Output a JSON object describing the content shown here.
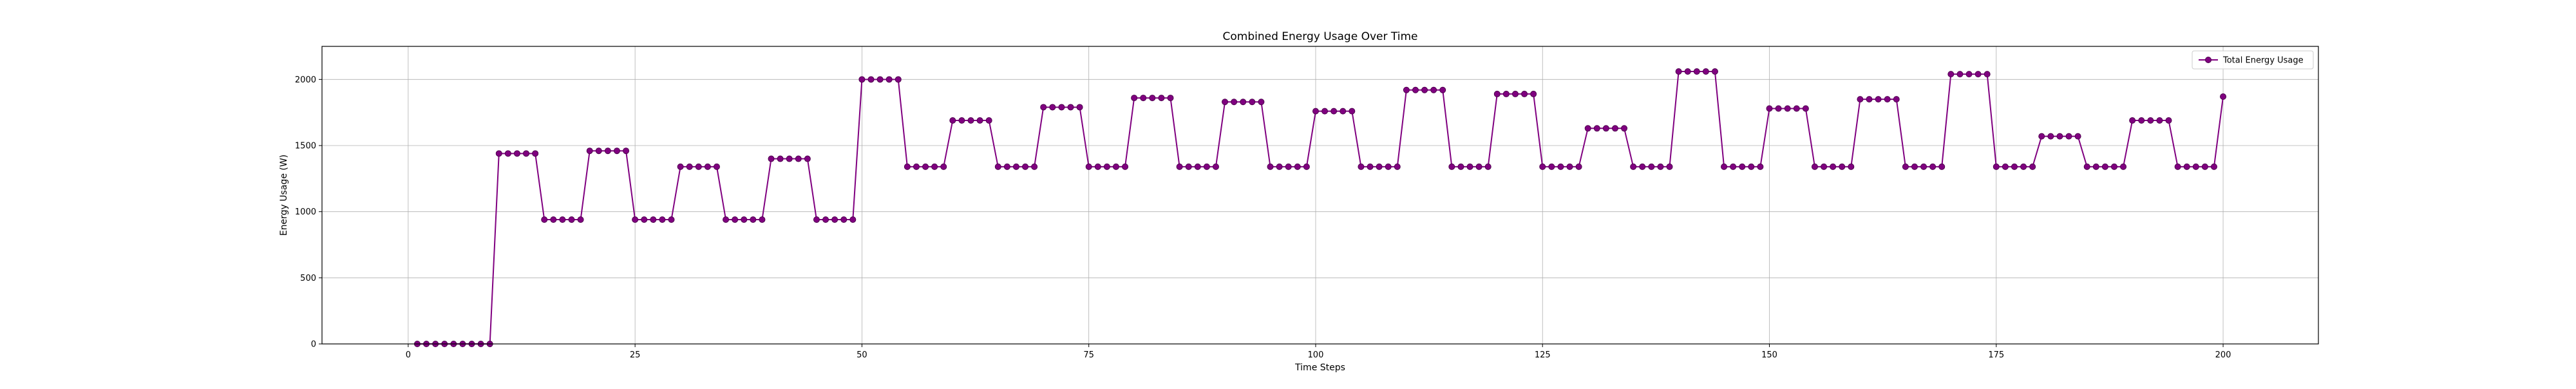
{
  "chart_data": {
    "type": "line",
    "title": "Combined Energy Usage Over Time",
    "xlabel": "Time Steps",
    "ylabel": "Energy Usage (W)",
    "xlim": [
      -9.5,
      210.5
    ],
    "ylim": [
      0,
      2250
    ],
    "xticks": [
      0,
      25,
      50,
      75,
      100,
      125,
      150,
      175,
      200
    ],
    "yticks": [
      0,
      500,
      1000,
      1500,
      2000
    ],
    "grid": true,
    "legend": {
      "position": "top-right",
      "entries": [
        "Total Energy Usage"
      ]
    },
    "colors": {
      "series": "#800080",
      "grid": "#b0b0b0"
    },
    "series": [
      {
        "name": "Total Energy Usage",
        "marker": "circle",
        "x": [
          1,
          2,
          3,
          4,
          5,
          6,
          7,
          8,
          9,
          10,
          11,
          12,
          13,
          14,
          15,
          16,
          17,
          18,
          19,
          20,
          21,
          22,
          23,
          24,
          25,
          26,
          27,
          28,
          29,
          30,
          31,
          32,
          33,
          34,
          35,
          36,
          37,
          38,
          39,
          40,
          41,
          42,
          43,
          44,
          45,
          46,
          47,
          48,
          49,
          50,
          51,
          52,
          53,
          54,
          55,
          56,
          57,
          58,
          59,
          60,
          61,
          62,
          63,
          64,
          65,
          66,
          67,
          68,
          69,
          70,
          71,
          72,
          73,
          74,
          75,
          76,
          77,
          78,
          79,
          80,
          81,
          82,
          83,
          84,
          85,
          86,
          87,
          88,
          89,
          90,
          91,
          92,
          93,
          94,
          95,
          96,
          97,
          98,
          99,
          100,
          101,
          102,
          103,
          104,
          105,
          106,
          107,
          108,
          109,
          110,
          111,
          112,
          113,
          114,
          115,
          116,
          117,
          118,
          119,
          120,
          121,
          122,
          123,
          124,
          125,
          126,
          127,
          128,
          129,
          130,
          131,
          132,
          133,
          134,
          135,
          136,
          137,
          138,
          139,
          140,
          141,
          142,
          143,
          144,
          145,
          146,
          147,
          148,
          149,
          150,
          151,
          152,
          153,
          154,
          155,
          156,
          157,
          158,
          159,
          160,
          161,
          162,
          163,
          164,
          165,
          166,
          167,
          168,
          169,
          170,
          171,
          172,
          173,
          174,
          175,
          176,
          177,
          178,
          179,
          180,
          181,
          182,
          183,
          184,
          185,
          186,
          187,
          188,
          189,
          190,
          191,
          192,
          193,
          194,
          195,
          196,
          197,
          198,
          199,
          200
        ],
        "y": [
          0,
          0,
          0,
          0,
          0,
          0,
          0,
          0,
          0,
          1440,
          1440,
          1440,
          1440,
          1440,
          940,
          940,
          940,
          940,
          940,
          1460,
          1460,
          1460,
          1460,
          1460,
          940,
          940,
          940,
          940,
          940,
          1340,
          1340,
          1340,
          1340,
          1340,
          940,
          940,
          940,
          940,
          940,
          1400,
          1400,
          1400,
          1400,
          1400,
          940,
          940,
          940,
          940,
          940,
          2000,
          2000,
          2000,
          2000,
          2000,
          1340,
          1340,
          1340,
          1340,
          1340,
          1690,
          1690,
          1690,
          1690,
          1690,
          1340,
          1340,
          1340,
          1340,
          1340,
          1790,
          1790,
          1790,
          1790,
          1790,
          1340,
          1340,
          1340,
          1340,
          1340,
          1860,
          1860,
          1860,
          1860,
          1860,
          1340,
          1340,
          1340,
          1340,
          1340,
          1830,
          1830,
          1830,
          1830,
          1830,
          1340,
          1340,
          1340,
          1340,
          1340,
          1760,
          1760,
          1760,
          1760,
          1760,
          1340,
          1340,
          1340,
          1340,
          1340,
          1920,
          1920,
          1920,
          1920,
          1920,
          1340,
          1340,
          1340,
          1340,
          1340,
          1890,
          1890,
          1890,
          1890,
          1890,
          1340,
          1340,
          1340,
          1340,
          1340,
          1630,
          1630,
          1630,
          1630,
          1630,
          1340,
          1340,
          1340,
          1340,
          1340,
          2060,
          2060,
          2060,
          2060,
          2060,
          1340,
          1340,
          1340,
          1340,
          1340,
          1780,
          1780,
          1780,
          1780,
          1780,
          1340,
          1340,
          1340,
          1340,
          1340,
          1850,
          1850,
          1850,
          1850,
          1850,
          1340,
          1340,
          1340,
          1340,
          1340,
          2040,
          2040,
          2040,
          2040,
          2040,
          1340,
          1340,
          1340,
          1340,
          1340,
          1570,
          1570,
          1570,
          1570,
          1570,
          1340,
          1340,
          1340,
          1340,
          1340,
          1690,
          1690,
          1690,
          1690,
          1690,
          1340,
          1340,
          1340,
          1340,
          1340,
          1870
        ]
      }
    ]
  }
}
